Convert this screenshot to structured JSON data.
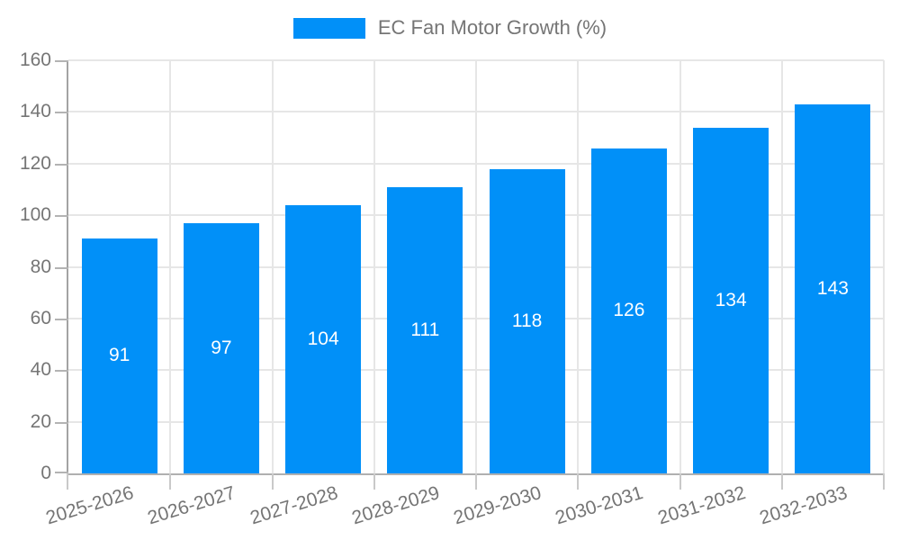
{
  "legend": {
    "label": "EC Fan Motor Growth (%)"
  },
  "colors": {
    "bar": "#0190f8",
    "grid": "#e6e6e6",
    "axis": "#aaaaaa",
    "text": "#757575",
    "value_label": "#ffffff"
  },
  "chart_data": {
    "type": "bar",
    "title": "",
    "legend_entries": [
      "EC Fan Motor Growth (%)"
    ],
    "legend_position": "top",
    "categories": [
      "2025-2026",
      "2026-2027",
      "2027-2028",
      "2028-2029",
      "2029-2030",
      "2030-2031",
      "2031-2032",
      "2032-2033"
    ],
    "series": [
      {
        "name": "EC Fan Motor Growth (%)",
        "values": [
          91,
          97,
          104,
          111,
          118,
          126,
          134,
          143
        ]
      }
    ],
    "value_labels": [
      91,
      97,
      104,
      111,
      118,
      126,
      134,
      143
    ],
    "xlabel": "",
    "ylabel": "",
    "ylim": [
      0,
      160
    ],
    "ytick_step": 20,
    "yticks": [
      0,
      20,
      40,
      60,
      80,
      100,
      120,
      140,
      160
    ],
    "grid": true,
    "x_label_rotation_deg": -17,
    "bar_color": "#0190f8"
  }
}
